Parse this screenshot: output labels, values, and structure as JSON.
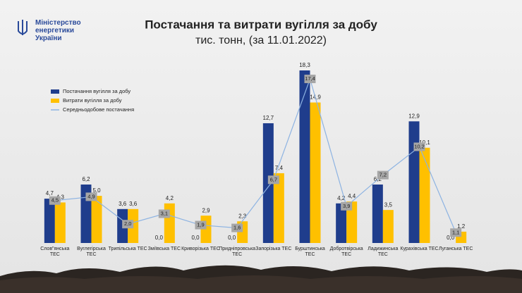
{
  "ministry": [
    "Міністерство",
    "енергетики",
    "України"
  ],
  "chart_data": {
    "type": "bar",
    "title": "Постачання та витрати вугілля за добу",
    "subtitle": "тис. тонн, (за 11.01.2022)",
    "legend": "top-left",
    "categories": [
      "Слов\"янська ТЕС",
      "Вуглегірська ТЕС",
      "Трипільська ТЕС",
      "Зміївська ТЕС",
      "Криворізька ТЕС",
      "Придніпровська ТЕС",
      "Запорізька ТЕС",
      "Бурштинська ТЕС",
      "Добротвірська ТЕС",
      "Ладижинська ТЕС",
      "Курахівська ТЕС",
      "Луганська ТЕС"
    ],
    "series": [
      {
        "name": "Постачання вугілля за добу",
        "type": "bar",
        "color": "#1f3d8c",
        "values": [
          4.7,
          6.2,
          3.6,
          0.0,
          0.0,
          0.0,
          12.7,
          18.3,
          4.2,
          6.2,
          12.9,
          0.0
        ],
        "value_labels": [
          "4,7",
          "6,2",
          "3,6",
          "0,0",
          "0,0",
          "0,0",
          "12,7",
          "18,3",
          "4,2",
          "6,2",
          "12,9",
          "0,0"
        ]
      },
      {
        "name": "Витрати вугілля за добу",
        "type": "bar",
        "color": "#ffc000",
        "values": [
          4.3,
          5.0,
          3.6,
          4.2,
          2.9,
          2.3,
          7.4,
          14.9,
          4.4,
          3.5,
          10.1,
          1.2
        ],
        "value_labels": [
          "4,3",
          "5,0",
          "3,6",
          "4,2",
          "2,9",
          "2,3",
          "7,4",
          "14,9",
          "4,4",
          "3,5",
          "10,1",
          "1,2"
        ]
      },
      {
        "name": "Середньодобове постачання",
        "type": "line",
        "color": "#8db3e2",
        "values": [
          4.5,
          4.9,
          2.0,
          3.1,
          1.9,
          1.6,
          6.7,
          17.4,
          3.9,
          7.2,
          10.2,
          1.1
        ],
        "value_labels": [
          "4,5",
          "4,9",
          "2,0",
          "3,1",
          "1,9",
          "1,6",
          "6,7",
          "17,4",
          "3,9",
          "7,2",
          "10,2",
          "1,1"
        ]
      }
    ]
  }
}
